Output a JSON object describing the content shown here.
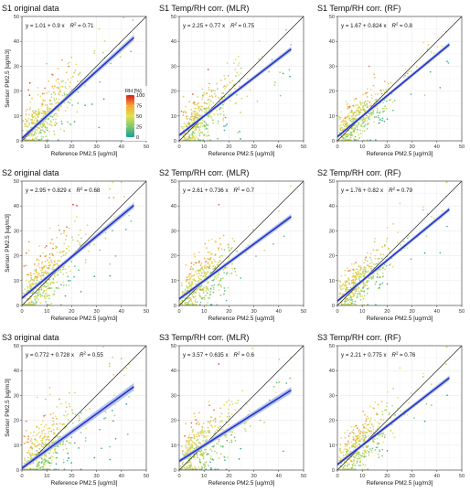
{
  "colors": {
    "regression": "#2233cc",
    "ci_band": "#a9b8e6",
    "identity": "#222222",
    "grid": "#ebebeb",
    "panel_border": "#333333",
    "rh_scale": [
      "#1b9c9c",
      "#7cc86a",
      "#e3e24c",
      "#f2a83a",
      "#d7191c"
    ]
  },
  "legend": {
    "title": "RH [%]",
    "ticks": [
      "100",
      "75",
      "50",
      "25",
      "0"
    ],
    "range": [
      0,
      100
    ]
  },
  "chart_data": [
    {
      "type": "scatter",
      "title": "S1 original data",
      "eq_prefix": "y = 1.01 + 0.9 x",
      "r2_value": "= 0.71",
      "intercept": 1.01,
      "slope": 0.9,
      "r2": 0.71,
      "ci": 1.2,
      "xlabel": "Reference PM2.5 [ug/m3]",
      "ylabel": "Sensor PM2.5 [ug/m3]",
      "xlim": [
        0,
        50
      ],
      "ylim": [
        0,
        50
      ],
      "xticks": [
        "0",
        "10",
        "20",
        "30",
        "40",
        "50"
      ],
      "yticks": [
        "0",
        "10",
        "20",
        "30",
        "40",
        "50"
      ],
      "identity_line": true,
      "grid": true,
      "legend": "top-right"
    },
    {
      "type": "scatter",
      "title": "S1 Temp/RH corr. (MLR)",
      "eq_prefix": "y = 2.25 + 0.77 x",
      "r2_value": "= 0.75",
      "intercept": 2.25,
      "slope": 0.77,
      "r2": 0.75,
      "ci": 1.0,
      "xlabel": "Reference PM2.5 [ug/m3]",
      "ylabel": "",
      "xlim": [
        0,
        50
      ],
      "ylim": [
        0,
        50
      ],
      "xticks": [
        "0",
        "10",
        "20",
        "30",
        "40",
        "50"
      ],
      "yticks": [
        "0",
        "10",
        "20",
        "30",
        "40",
        "50"
      ],
      "identity_line": true,
      "grid": true
    },
    {
      "type": "scatter",
      "title": "S1 Temp/RH corr. (RF)",
      "eq_prefix": "y = 1.67 + 0.824 x",
      "r2_value": "= 0.8",
      "intercept": 1.67,
      "slope": 0.824,
      "r2": 0.8,
      "ci": 0.9,
      "xlabel": "Reference PM2.5 [ug/m3]",
      "ylabel": "",
      "xlim": [
        0,
        50
      ],
      "ylim": [
        0,
        50
      ],
      "xticks": [
        "0",
        "10",
        "20",
        "30",
        "40",
        "50"
      ],
      "yticks": [
        "0",
        "10",
        "20",
        "30",
        "40",
        "50"
      ],
      "identity_line": true,
      "grid": true
    },
    {
      "type": "scatter",
      "title": "S2 original data",
      "eq_prefix": "y = 2.95 + 0.829 x",
      "r2_value": "= 0.68",
      "intercept": 2.95,
      "slope": 0.829,
      "r2": 0.68,
      "ci": 1.2,
      "xlabel": "Reference PM2.5 [ug/m3]",
      "ylabel": "Sensor PM2.5 [ug/m3]",
      "xlim": [
        0,
        50
      ],
      "ylim": [
        0,
        50
      ],
      "xticks": [
        "0",
        "10",
        "20",
        "30",
        "40",
        "50"
      ],
      "yticks": [
        "0",
        "10",
        "20",
        "30",
        "40",
        "50"
      ],
      "identity_line": true,
      "grid": true
    },
    {
      "type": "scatter",
      "title": "S2 Temp/RH corr. (MLR)",
      "eq_prefix": "y = 2.61 + 0.736 x",
      "r2_value": "= 0.7",
      "intercept": 2.61,
      "slope": 0.736,
      "r2": 0.7,
      "ci": 1.1,
      "xlabel": "Reference PM2.5 [ug/m3]",
      "ylabel": "",
      "xlim": [
        0,
        50
      ],
      "ylim": [
        0,
        50
      ],
      "xticks": [
        "0",
        "10",
        "20",
        "30",
        "40",
        "50"
      ],
      "yticks": [
        "0",
        "10",
        "20",
        "30",
        "40",
        "50"
      ],
      "identity_line": true,
      "grid": true
    },
    {
      "type": "scatter",
      "title": "S2 Temp/RH corr. (RF)",
      "eq_prefix": "y = 1.76 + 0.82 x",
      "r2_value": "= 0.79",
      "intercept": 1.76,
      "slope": 0.82,
      "r2": 0.79,
      "ci": 0.9,
      "xlabel": "Reference PM2.5 [ug/m3]",
      "ylabel": "",
      "xlim": [
        0,
        50
      ],
      "ylim": [
        0,
        50
      ],
      "xticks": [
        "0",
        "10",
        "20",
        "30",
        "40",
        "50"
      ],
      "yticks": [
        "0",
        "10",
        "20",
        "30",
        "40",
        "50"
      ],
      "identity_line": true,
      "grid": true
    },
    {
      "type": "scatter",
      "title": "S3 original data",
      "eq_prefix": "y = 0.772 + 0.728 x",
      "r2_value": "= 0.55",
      "intercept": 0.772,
      "slope": 0.728,
      "r2": 0.55,
      "ci": 1.5,
      "xlabel": "Reference PM2.5 [ug/m3]",
      "ylabel": "Sensor PM2.5 [ug/m3]",
      "xlim": [
        0,
        50
      ],
      "ylim": [
        0,
        50
      ],
      "xticks": [
        "0",
        "10",
        "20",
        "30",
        "40",
        "50"
      ],
      "yticks": [
        "0",
        "10",
        "20",
        "30",
        "40",
        "50"
      ],
      "identity_line": true,
      "grid": true
    },
    {
      "type": "scatter",
      "title": "S3 Temp/RH corr. (MLR)",
      "eq_prefix": "y = 3.57 + 0.635 x",
      "r2_value": "= 0.6",
      "intercept": 3.57,
      "slope": 0.635,
      "r2": 0.6,
      "ci": 1.3,
      "xlabel": "Reference PM2.5 [ug/m3]",
      "ylabel": "",
      "xlim": [
        0,
        50
      ],
      "ylim": [
        0,
        50
      ],
      "xticks": [
        "0",
        "10",
        "20",
        "30",
        "40",
        "50"
      ],
      "yticks": [
        "0",
        "10",
        "20",
        "30",
        "40",
        "50"
      ],
      "identity_line": true,
      "grid": true
    },
    {
      "type": "scatter",
      "title": "S3 Temp/RH corr. (RF)",
      "eq_prefix": "y = 2.21 + 0.775 x",
      "r2_value": "= 0.76",
      "intercept": 2.21,
      "slope": 0.775,
      "r2": 0.76,
      "ci": 1.0,
      "xlabel": "Reference PM2.5 [ug/m3]",
      "ylabel": "",
      "xlim": [
        0,
        50
      ],
      "ylim": [
        0,
        50
      ],
      "xticks": [
        "0",
        "10",
        "20",
        "30",
        "40",
        "50"
      ],
      "yticks": [
        "0",
        "10",
        "20",
        "30",
        "40",
        "50"
      ],
      "identity_line": true,
      "grid": true
    }
  ]
}
